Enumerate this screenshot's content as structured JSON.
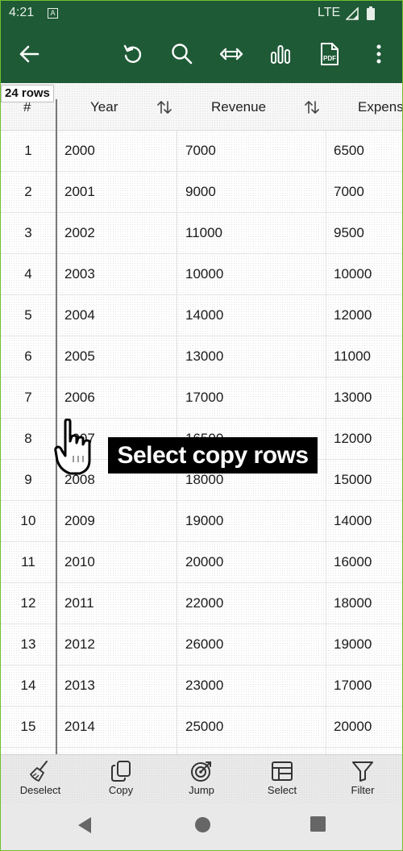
{
  "status_bar": {
    "time": "4:21",
    "sim_badge": "A",
    "network": "LTE",
    "signal_icon": "signal-icon",
    "battery_icon": "battery-icon"
  },
  "toolbar": {
    "back_icon": "arrow-left-icon",
    "actions": [
      "undo-icon",
      "search-icon",
      "resize-columns-icon",
      "bar-chart-icon",
      "pdf-icon",
      "more-vert-icon"
    ],
    "pdf_label": "PDF",
    "background_color": "#1e5a36"
  },
  "table": {
    "row_count_label": "24 rows",
    "headers": {
      "index": "#",
      "year": "Year",
      "revenue": "Revenue",
      "expenses": "Expens"
    },
    "rows": [
      {
        "n": "1",
        "year": "2000",
        "revenue": "7000",
        "expenses": "6500"
      },
      {
        "n": "2",
        "year": "2001",
        "revenue": "9000",
        "expenses": "7000"
      },
      {
        "n": "3",
        "year": "2002",
        "revenue": "11000",
        "expenses": "9500"
      },
      {
        "n": "4",
        "year": "2003",
        "revenue": "10000",
        "expenses": "10000"
      },
      {
        "n": "5",
        "year": "2004",
        "revenue": "14000",
        "expenses": "12000"
      },
      {
        "n": "6",
        "year": "2005",
        "revenue": "13000",
        "expenses": "11000"
      },
      {
        "n": "7",
        "year": "2006",
        "revenue": "17000",
        "expenses": "13000"
      },
      {
        "n": "8",
        "year": "2007",
        "revenue": "16500",
        "expenses": "12000"
      },
      {
        "n": "9",
        "year": "2008",
        "revenue": "18000",
        "expenses": "15000"
      },
      {
        "n": "10",
        "year": "2009",
        "revenue": "19000",
        "expenses": "14000"
      },
      {
        "n": "11",
        "year": "2010",
        "revenue": "20000",
        "expenses": "16000"
      },
      {
        "n": "12",
        "year": "2011",
        "revenue": "22000",
        "expenses": "18000"
      },
      {
        "n": "13",
        "year": "2012",
        "revenue": "26000",
        "expenses": "19000"
      },
      {
        "n": "14",
        "year": "2013",
        "revenue": "23000",
        "expenses": "17000"
      },
      {
        "n": "15",
        "year": "2014",
        "revenue": "25000",
        "expenses": "20000"
      }
    ]
  },
  "overlay": {
    "caption": "Select copy rows",
    "pointer_icon": "hand-pointer-icon"
  },
  "bottom_bar": {
    "items": [
      {
        "label": "Deselect",
        "icon": "broom-icon"
      },
      {
        "label": "Copy",
        "icon": "copy-icon"
      },
      {
        "label": "Jump",
        "icon": "target-icon"
      },
      {
        "label": "Select",
        "icon": "table-select-icon"
      },
      {
        "label": "Filter",
        "icon": "filter-icon"
      }
    ]
  },
  "nav_bar": {
    "buttons": [
      "back-triangle-icon",
      "home-circle-icon",
      "recents-square-icon"
    ]
  }
}
